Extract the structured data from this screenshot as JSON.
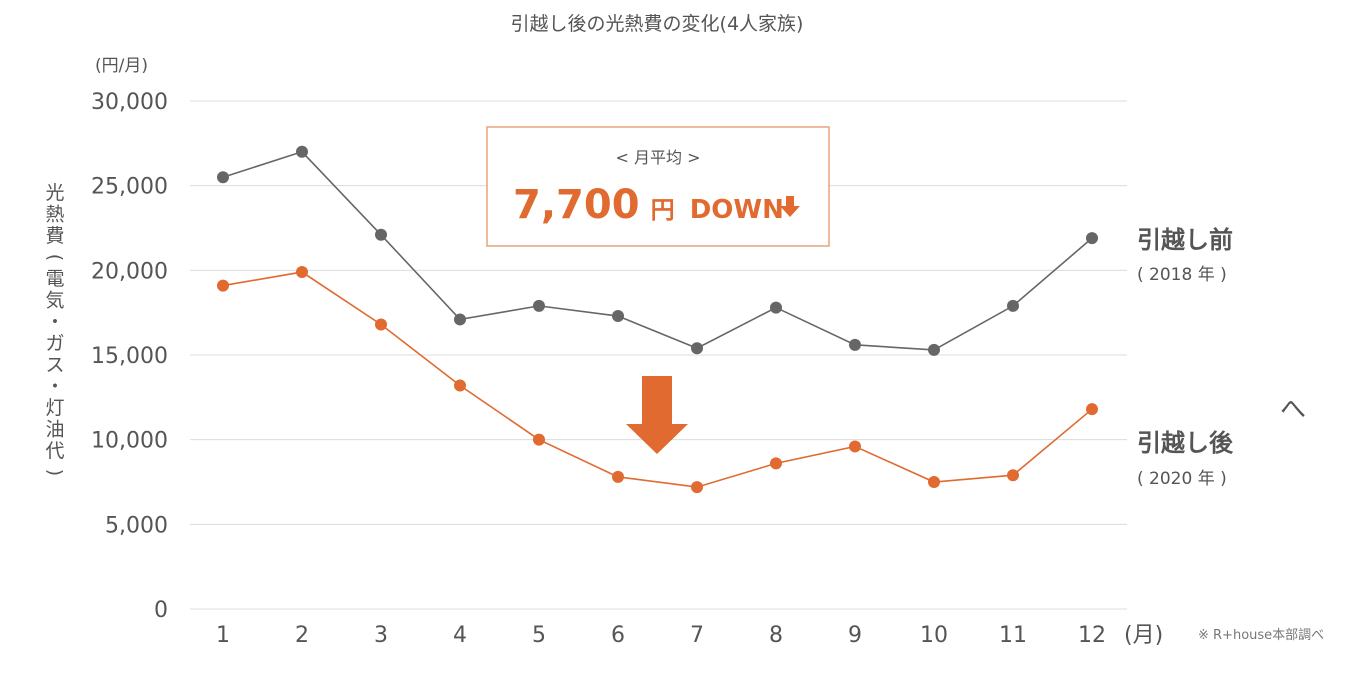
{
  "chart_data": {
    "type": "line",
    "title": "引越し後の光熱費の変化(4人家族)",
    "y_unit": "(円/月)",
    "ylabel": "光熱費(電気・ガス・灯油代)",
    "x_unit": "(月)",
    "ylim": [
      0,
      30000
    ],
    "y_ticks": [
      "30,000",
      "25,000",
      "20,000",
      "15,000",
      "10,000",
      "5,000",
      "0"
    ],
    "categories": [
      "1",
      "2",
      "3",
      "4",
      "5",
      "6",
      "7",
      "8",
      "9",
      "10",
      "11",
      "12"
    ],
    "grid": true,
    "series": [
      {
        "name": "引越し前",
        "year_label": "( 2018 年 )",
        "color": "#666666",
        "values": [
          25500,
          27000,
          22100,
          17100,
          17900,
          17300,
          15400,
          17800,
          15600,
          15300,
          17900,
          21900
        ]
      },
      {
        "name": "引越し後",
        "year_label": "( 2020 年 )",
        "color": "#e06a2f",
        "values": [
          19100,
          19900,
          16800,
          13200,
          10000,
          7800,
          7200,
          8600,
          9600,
          7500,
          7900,
          11800
        ]
      }
    ],
    "annotation": {
      "heading": "< 月平均 >",
      "amount": "7,700",
      "unit": "円",
      "change": "DOWN",
      "arrow_color": "#e06a2f"
    },
    "caret": "へ",
    "source": "※ R+house本部調べ"
  }
}
